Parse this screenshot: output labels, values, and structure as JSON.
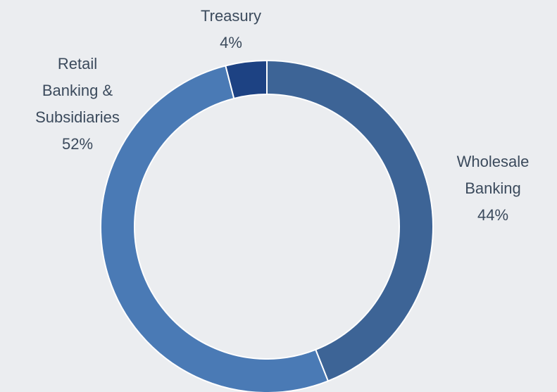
{
  "chart_data": {
    "type": "donut",
    "categories": [
      "Wholesale Banking",
      "Retail Banking & Subsidiaries",
      "Treasury"
    ],
    "values": [
      44,
      52,
      4
    ],
    "value_labels": [
      "44%",
      "52%",
      "4%"
    ],
    "colors": [
      "#3d6496",
      "#4a7ab5",
      "#1d4283"
    ]
  }
}
